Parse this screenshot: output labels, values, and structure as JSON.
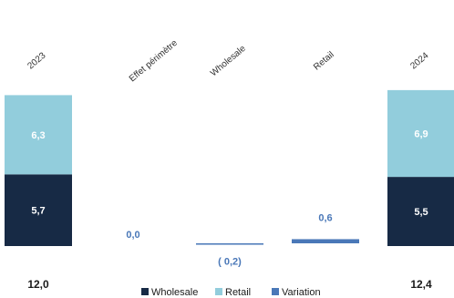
{
  "chart_data": {
    "type": "bar",
    "categories": [
      "2023",
      "Effet périmètre",
      "Wholesale",
      "Retail",
      "2024"
    ],
    "totals": [
      {
        "category": "2023",
        "wholesale": 5.7,
        "retail": 6.3,
        "total": 12.0,
        "wholesale_label": "5,7",
        "retail_label": "6,3",
        "total_label": "12,0"
      },
      {
        "category": "2024",
        "wholesale": 5.5,
        "retail": 6.9,
        "total": 12.4,
        "wholesale_label": "5,5",
        "retail_label": "6,9",
        "total_label": "12,4"
      }
    ],
    "variations": [
      {
        "category": "Effet périmètre",
        "value": 0.0,
        "label": "0,0"
      },
      {
        "category": "Wholesale",
        "value": -0.2,
        "label": "( 0,2)"
      },
      {
        "category": "Retail",
        "value": 0.6,
        "label": "0,6"
      }
    ],
    "series": [
      {
        "name": "Wholesale",
        "color": "#172a45"
      },
      {
        "name": "Retail",
        "color": "#92cddc"
      },
      {
        "name": "Variation",
        "color": "#4a78b8"
      }
    ],
    "legend_position": "bottom"
  }
}
